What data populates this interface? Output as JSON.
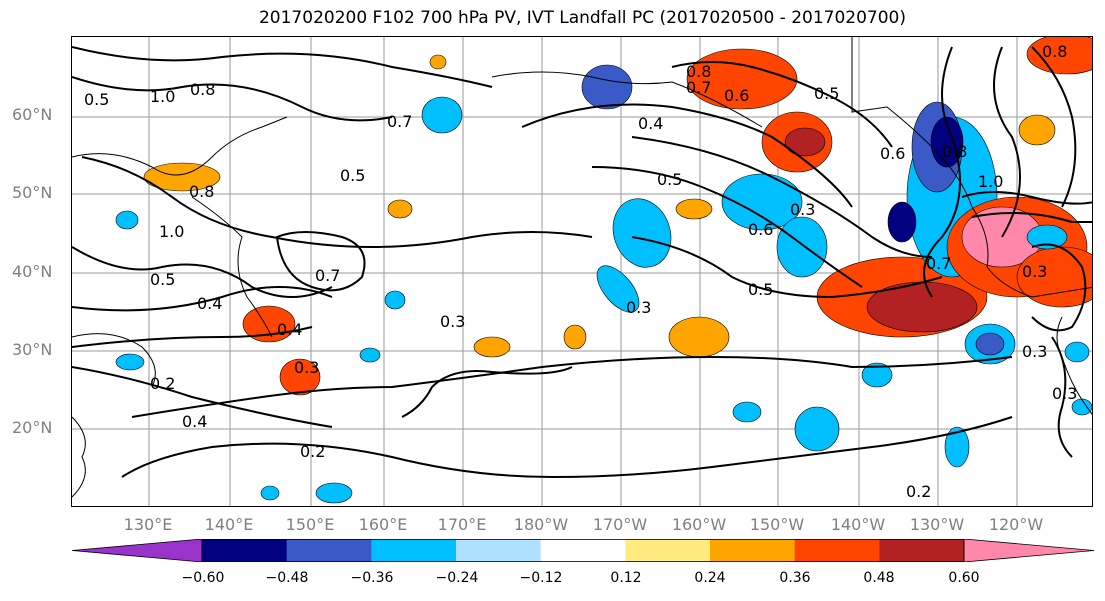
{
  "title": "2017020200 F102 700 hPa PV, IVT Landfall PC (2017020500 - 2017020700)",
  "lat_labels": [
    "60°N",
    "50°N",
    "40°N",
    "30°N",
    "20°N"
  ],
  "lon_labels": [
    "130°E",
    "140°E",
    "150°E",
    "160°E",
    "170°E",
    "180°W",
    "170°W",
    "160°W",
    "150°W",
    "140°W",
    "130°W",
    "120°W"
  ],
  "contour_labels": [
    "1.0",
    "0.8",
    "0.8",
    "0.7",
    "0.6",
    "0.5",
    "0.7",
    "0.4",
    "0.5",
    "0.8",
    "0.3",
    "0.6",
    "0.6",
    "0.5",
    "0.8",
    "1.0",
    "0.8",
    "1.0",
    "0.5",
    "0.4",
    "0.7",
    "0.5",
    "0.3",
    "0.3",
    "0.7",
    "0.3",
    "0.4",
    "0.3",
    "0.2",
    "0.4",
    "0.2",
    "0.3",
    "0.3",
    "0.2",
    "0.5"
  ],
  "colorbar": {
    "colors": [
      "#9933cc",
      "#000080",
      "#3a5bc7",
      "#00bfff",
      "#b0e0ff",
      "#ffffff",
      "#ffeb80",
      "#ffa500",
      "#ff4500",
      "#b22222",
      "#ff88aa"
    ],
    "ticks": [
      "−0.60",
      "−0.48",
      "−0.36",
      "−0.24",
      "−0.12",
      "0.12",
      "0.24",
      "0.36",
      "0.48",
      "0.60"
    ]
  }
}
